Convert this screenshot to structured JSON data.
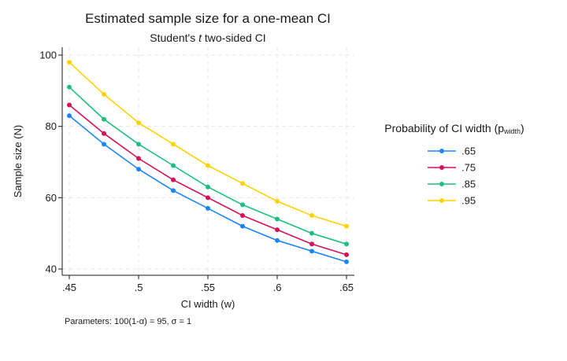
{
  "chart_data": {
    "type": "line",
    "title": "Estimated sample size for a one-mean CI",
    "subtitle_prefix": "Student's ",
    "subtitle_italic": "t",
    "subtitle_suffix": " two-sided CI",
    "xlabel": "CI width (w)",
    "ylabel": "Sample size (N)",
    "x": [
      0.45,
      0.475,
      0.5,
      0.525,
      0.55,
      0.575,
      0.6,
      0.625,
      0.65
    ],
    "xticks": [
      0.45,
      0.5,
      0.55,
      0.6,
      0.65
    ],
    "xtick_labels": [
      ".45",
      ".5",
      ".55",
      ".6",
      ".65"
    ],
    "yticks": [
      40,
      60,
      80,
      100
    ],
    "ytick_labels": [
      "40",
      "60",
      "80",
      "100"
    ],
    "xlim": [
      0.45,
      0.65
    ],
    "ylim": [
      40,
      100
    ],
    "grid": true,
    "legend": {
      "title_prefix": "Probability of CI width (p",
      "title_sub": "width",
      "title_suffix": ")",
      "position": "right"
    },
    "series": [
      {
        "name": ".65",
        "color": "#1a85ff",
        "values": [
          83,
          75,
          68,
          62,
          57,
          52,
          48,
          45,
          42
        ]
      },
      {
        "name": ".75",
        "color": "#d41159",
        "values": [
          86,
          78,
          71,
          65,
          60,
          55,
          51,
          47,
          44
        ]
      },
      {
        "name": ".85",
        "color": "#1dbf7f",
        "values": [
          91,
          82,
          75,
          69,
          63,
          58,
          54,
          50,
          47
        ]
      },
      {
        "name": ".95",
        "color": "#ffd200",
        "values": [
          98,
          89,
          81,
          75,
          69,
          64,
          59,
          55,
          52
        ]
      }
    ],
    "note": "Parameters: 100(1-α) = 95, σ = 1"
  }
}
